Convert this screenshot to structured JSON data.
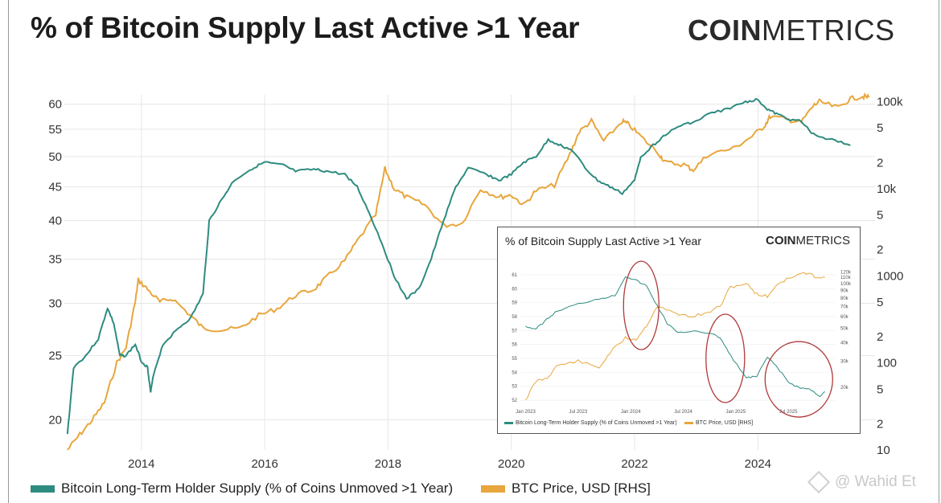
{
  "title": "% of Bitcoin Supply Last Active >1 Year",
  "logo": {
    "bold": "COIN",
    "thin": "METRICS"
  },
  "watermark": "@ Wahid Et",
  "colors": {
    "supply": "#2e8b80",
    "price": "#e8a63c",
    "grid": "#e6e6e6",
    "circle": "#b03a3a"
  },
  "chart_data": [
    {
      "type": "line",
      "title": "% of Bitcoin Supply Last Active >1 Year",
      "x_ticks": [
        "2014",
        "2016",
        "2018",
        "2020",
        "2022",
        "2024"
      ],
      "y_left_ticks": [
        "60",
        "55",
        "50",
        "45",
        "40",
        "35",
        "30",
        "25",
        "20"
      ],
      "y_left_scale": "log",
      "y_left_range": [
        18,
        62
      ],
      "y_right_ticks": [
        "100k",
        "5",
        "2",
        "10k",
        "5",
        "2",
        "1000",
        "5",
        "2",
        "100",
        "5",
        "2",
        "10"
      ],
      "y_right_scale": "log",
      "y_right_range": [
        10,
        120000
      ],
      "legend": [
        {
          "label": "Bitcoin Long-Term Holder Supply (% of Coins Unmoved >1 Year)",
          "color": "#2e8b80"
        },
        {
          "label": "BTC Price, USD [RHS]",
          "color": "#e8a63c"
        }
      ],
      "series": [
        {
          "name": "Bitcoin Long-Term Holder Supply (% of Coins Unmoved >1 Year)",
          "axis": "left",
          "points": [
            [
              2012.8,
              19
            ],
            [
              2012.9,
              24
            ],
            [
              2013.1,
              25
            ],
            [
              2013.3,
              26.5
            ],
            [
              2013.45,
              29.5
            ],
            [
              2013.55,
              28
            ],
            [
              2013.65,
              25
            ],
            [
              2013.75,
              25
            ],
            [
              2013.9,
              26
            ],
            [
              2014.0,
              24.5
            ],
            [
              2014.1,
              24
            ],
            [
              2014.15,
              22
            ],
            [
              2014.2,
              23.5
            ],
            [
              2014.35,
              26
            ],
            [
              2014.6,
              27.5
            ],
            [
              2014.8,
              28.5
            ],
            [
              2015.0,
              31
            ],
            [
              2015.1,
              40
            ],
            [
              2015.3,
              43
            ],
            [
              2015.5,
              46
            ],
            [
              2015.8,
              48
            ],
            [
              2016.0,
              49
            ],
            [
              2016.3,
              48.5
            ],
            [
              2016.5,
              47.5
            ],
            [
              2016.8,
              47.8
            ],
            [
              2017.0,
              47.5
            ],
            [
              2017.3,
              47
            ],
            [
              2017.5,
              45
            ],
            [
              2017.7,
              41
            ],
            [
              2017.9,
              37
            ],
            [
              2018.1,
              33
            ],
            [
              2018.3,
              30.5
            ],
            [
              2018.5,
              31.5
            ],
            [
              2018.7,
              35
            ],
            [
              2018.9,
              40
            ],
            [
              2019.1,
              45
            ],
            [
              2019.3,
              48
            ],
            [
              2019.6,
              47
            ],
            [
              2019.8,
              46
            ],
            [
              2020.0,
              47
            ],
            [
              2020.2,
              49
            ],
            [
              2020.4,
              50
            ],
            [
              2020.6,
              53
            ],
            [
              2020.8,
              52
            ],
            [
              2021.0,
              51
            ],
            [
              2021.2,
              48
            ],
            [
              2021.4,
              46
            ],
            [
              2021.6,
              45
            ],
            [
              2021.8,
              44
            ],
            [
              2022.0,
              46
            ],
            [
              2022.1,
              50
            ],
            [
              2022.3,
              52
            ],
            [
              2022.5,
              54
            ],
            [
              2022.8,
              56
            ],
            [
              2023.0,
              56.5
            ],
            [
              2023.2,
              58
            ],
            [
              2023.5,
              59
            ],
            [
              2023.8,
              60.5
            ],
            [
              2024.0,
              61
            ],
            [
              2024.15,
              59
            ],
            [
              2024.3,
              58
            ],
            [
              2024.5,
              57
            ],
            [
              2024.7,
              56.5
            ],
            [
              2024.9,
              54
            ],
            [
              2025.2,
              53
            ],
            [
              2025.5,
              52
            ]
          ]
        },
        {
          "name": "BTC Price, USD [RHS]",
          "axis": "right",
          "points": [
            [
              2012.8,
              10
            ],
            [
              2013.0,
              15
            ],
            [
              2013.2,
              22
            ],
            [
              2013.4,
              35
            ],
            [
              2013.6,
              100
            ],
            [
              2013.75,
              150
            ],
            [
              2013.9,
              500
            ],
            [
              2013.95,
              900
            ],
            [
              2014.1,
              700
            ],
            [
              2014.3,
              500
            ],
            [
              2014.5,
              550
            ],
            [
              2014.8,
              350
            ],
            [
              2015.0,
              250
            ],
            [
              2015.3,
              240
            ],
            [
              2015.6,
              250
            ],
            [
              2015.9,
              350
            ],
            [
              2016.2,
              420
            ],
            [
              2016.5,
              600
            ],
            [
              2016.8,
              700
            ],
            [
              2017.0,
              950
            ],
            [
              2017.3,
              1500
            ],
            [
              2017.5,
              2500
            ],
            [
              2017.8,
              5000
            ],
            [
              2017.95,
              17000
            ],
            [
              2018.1,
              10000
            ],
            [
              2018.3,
              8000
            ],
            [
              2018.6,
              6500
            ],
            [
              2018.9,
              3800
            ],
            [
              2019.2,
              4000
            ],
            [
              2019.5,
              10000
            ],
            [
              2019.8,
              8000
            ],
            [
              2020.0,
              8500
            ],
            [
              2020.2,
              6500
            ],
            [
              2020.4,
              9500
            ],
            [
              2020.7,
              11000
            ],
            [
              2020.95,
              25000
            ],
            [
              2021.1,
              45000
            ],
            [
              2021.3,
              60000
            ],
            [
              2021.5,
              35000
            ],
            [
              2021.8,
              60000
            ],
            [
              2021.9,
              55000
            ],
            [
              2022.1,
              40000
            ],
            [
              2022.4,
              25000
            ],
            [
              2022.5,
              20000
            ],
            [
              2022.8,
              19000
            ],
            [
              2022.95,
              16500
            ],
            [
              2023.2,
              25000
            ],
            [
              2023.6,
              29000
            ],
            [
              2023.9,
              40000
            ],
            [
              2024.1,
              52000
            ],
            [
              2024.2,
              68000
            ],
            [
              2024.5,
              62000
            ],
            [
              2024.7,
              58000
            ],
            [
              2024.9,
              90000
            ],
            [
              2025.0,
              100000
            ],
            [
              2025.3,
              85000
            ],
            [
              2025.5,
              108000
            ],
            [
              2025.7,
              115000
            ],
            [
              2025.8,
              112000
            ]
          ]
        }
      ]
    },
    {
      "type": "line",
      "title": "% of Bitcoin Supply Last Active >1 Year",
      "x_ticks": [
        "Jan 2023",
        "Jul 2023",
        "Jan 2024",
        "Jul 2024",
        "Jan 2025",
        "Jul 2025"
      ],
      "y_left_ticks": [
        "61",
        "60",
        "59",
        "58",
        "57",
        "56",
        "55",
        "54",
        "53",
        "52"
      ],
      "y_left_range": [
        51.6,
        61.4
      ],
      "y_right_ticks": [
        "120k",
        "110k",
        "100k",
        "90k",
        "80k",
        "70k",
        "60k",
        "50k",
        "40k",
        "30k",
        "20k"
      ],
      "y_right_range": [
        15000,
        125000
      ],
      "legend": [
        {
          "label": "Bitcoin Long-Term Holder Supply (% of Coins Unmoved >1 Year)",
          "color": "#2e8b80"
        },
        {
          "label": "BTC Price, USD [RHS]",
          "color": "#e8a63c"
        }
      ],
      "series": [
        {
          "name": "Bitcoin Long-Term Holder Supply (% of Coins Unmoved >1 Year)",
          "axis": "left",
          "points": [
            [
              2023.0,
              57.3
            ],
            [
              2023.1,
              57.1
            ],
            [
              2023.2,
              57.8
            ],
            [
              2023.3,
              58.4
            ],
            [
              2023.5,
              58.9
            ],
            [
              2023.7,
              59.3
            ],
            [
              2023.85,
              59.5
            ],
            [
              2023.95,
              60.9
            ],
            [
              2024.05,
              60.6
            ],
            [
              2024.15,
              60.2
            ],
            [
              2024.25,
              58.8
            ],
            [
              2024.35,
              57.5
            ],
            [
              2024.45,
              56.8
            ],
            [
              2024.6,
              57
            ],
            [
              2024.75,
              56.8
            ],
            [
              2024.85,
              56.5
            ],
            [
              2024.95,
              55.2
            ],
            [
              2025.1,
              53.6
            ],
            [
              2025.2,
              53.7
            ],
            [
              2025.3,
              55.1
            ],
            [
              2025.4,
              54.3
            ],
            [
              2025.5,
              53.3
            ],
            [
              2025.6,
              52.9
            ],
            [
              2025.7,
              52.8
            ],
            [
              2025.8,
              52.3
            ],
            [
              2025.85,
              52.6
            ]
          ]
        },
        {
          "name": "BTC Price, USD [RHS]",
          "axis": "right",
          "points": [
            [
              2023.0,
              16500
            ],
            [
              2023.1,
              22000
            ],
            [
              2023.2,
              23000
            ],
            [
              2023.3,
              28000
            ],
            [
              2023.5,
              30000
            ],
            [
              2023.7,
              27000
            ],
            [
              2023.8,
              34000
            ],
            [
              2023.95,
              43000
            ],
            [
              2024.05,
              42000
            ],
            [
              2024.15,
              52000
            ],
            [
              2024.25,
              70000
            ],
            [
              2024.4,
              64000
            ],
            [
              2024.55,
              60000
            ],
            [
              2024.7,
              62000
            ],
            [
              2024.85,
              70000
            ],
            [
              2024.95,
              95000
            ],
            [
              2025.1,
              100000
            ],
            [
              2025.2,
              85000
            ],
            [
              2025.3,
              82000
            ],
            [
              2025.4,
              100000
            ],
            [
              2025.5,
              108000
            ],
            [
              2025.65,
              118000
            ],
            [
              2025.75,
              112000
            ],
            [
              2025.85,
              110000
            ]
          ]
        }
      ],
      "annotations": [
        "circle: early 2024 peak",
        "circle: late 2024 decline",
        "circle: mid 2025 decline"
      ]
    }
  ]
}
